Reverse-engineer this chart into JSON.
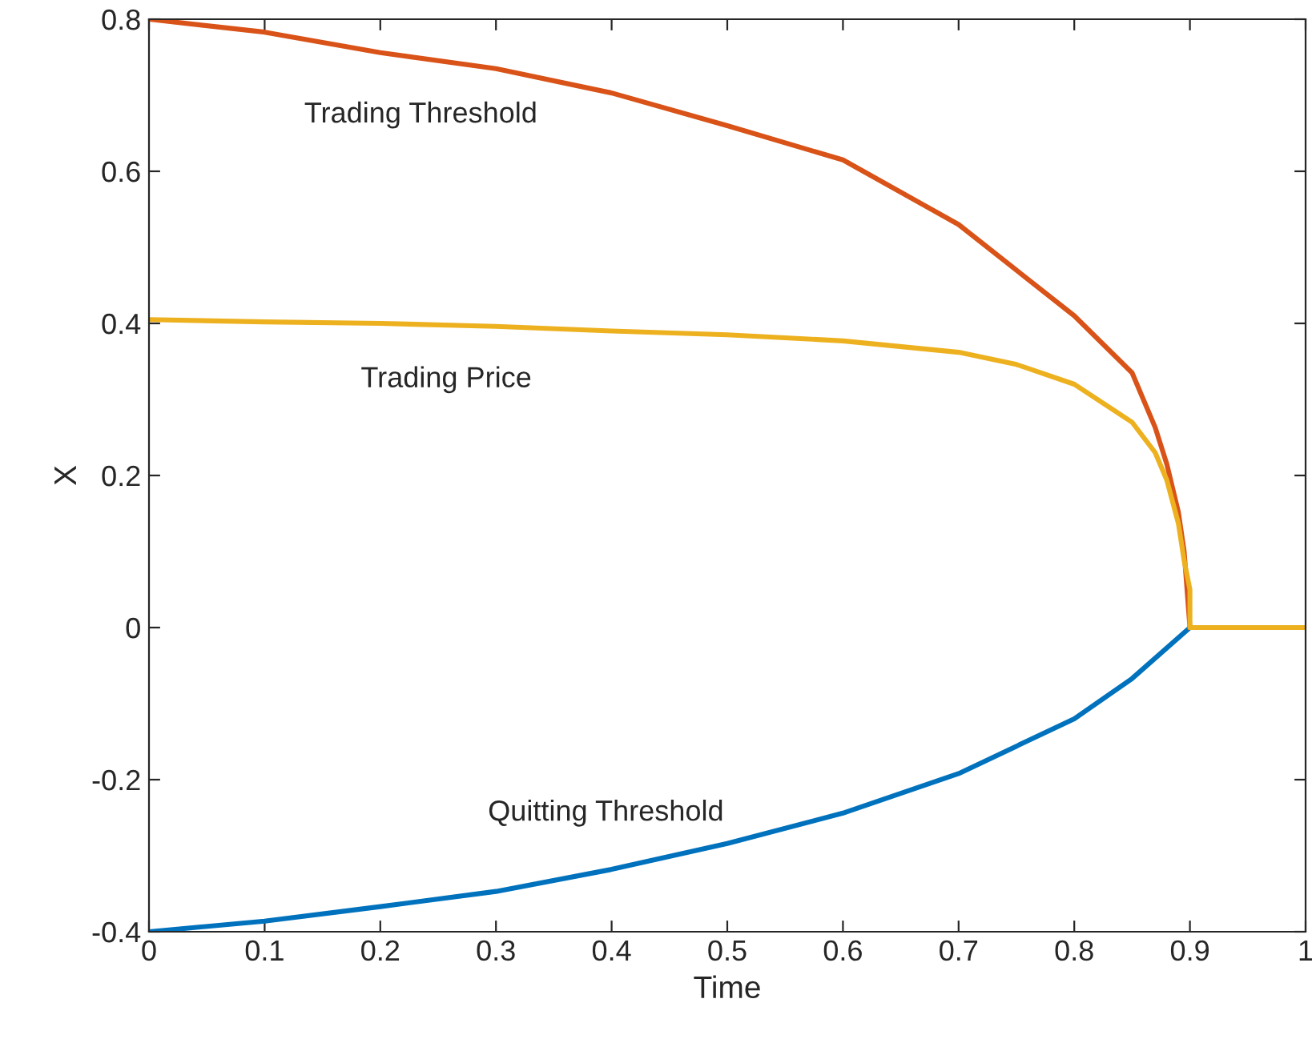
{
  "chart_data": {
    "type": "line",
    "xlabel": "Time",
    "ylabel": "X",
    "xlim": [
      0,
      1
    ],
    "ylim": [
      -0.4,
      0.8
    ],
    "xticks": [
      0,
      0.1,
      0.2,
      0.3,
      0.4,
      0.5,
      0.6,
      0.7,
      0.8,
      0.9,
      1
    ],
    "yticks": [
      -0.4,
      -0.2,
      0,
      0.2,
      0.4,
      0.6,
      0.8
    ],
    "grid": false,
    "marker": "none",
    "line_style": "solid",
    "series": [
      {
        "name": "Quitting Threshold",
        "color": "#0072bd",
        "x": [
          0,
          0.1,
          0.2,
          0.3,
          0.4,
          0.5,
          0.6,
          0.7,
          0.8,
          0.85,
          0.9
        ],
        "values": [
          -0.4,
          -0.386,
          -0.367,
          -0.347,
          -0.318,
          -0.284,
          -0.244,
          -0.192,
          -0.12,
          -0.067,
          0
        ]
      },
      {
        "name": "Trading Threshold",
        "color": "#d95319",
        "x": [
          0,
          0.1,
          0.2,
          0.3,
          0.4,
          0.5,
          0.6,
          0.7,
          0.8,
          0.85,
          0.87,
          0.88,
          0.89,
          0.895,
          0.9
        ],
        "values": [
          0.8,
          0.783,
          0.756,
          0.735,
          0.703,
          0.66,
          0.615,
          0.53,
          0.41,
          0.335,
          0.263,
          0.215,
          0.152,
          0.1,
          0
        ]
      },
      {
        "name": "Trading Price",
        "color": "#edb120",
        "x": [
          0,
          0.1,
          0.2,
          0.3,
          0.4,
          0.5,
          0.6,
          0.7,
          0.75,
          0.8,
          0.85,
          0.87,
          0.88,
          0.89,
          0.895,
          0.9,
          0.9,
          1
        ],
        "values": [
          0.405,
          0.402,
          0.4,
          0.396,
          0.39,
          0.385,
          0.377,
          0.362,
          0.346,
          0.32,
          0.27,
          0.23,
          0.194,
          0.137,
          0.088,
          0.05,
          0,
          0
        ]
      }
    ]
  }
}
